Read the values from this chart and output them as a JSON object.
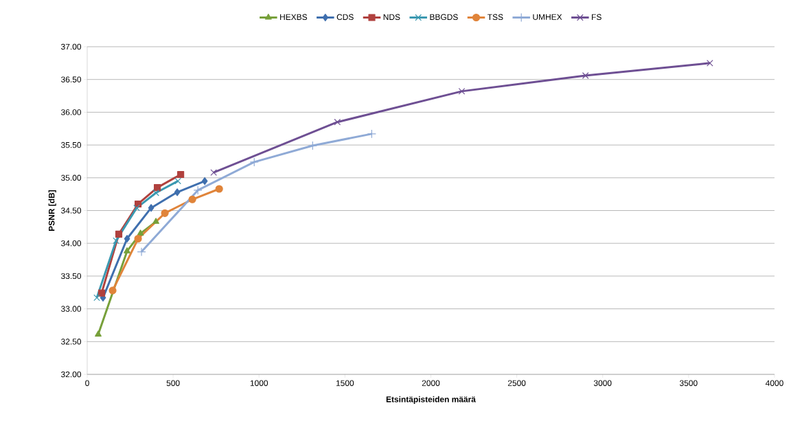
{
  "chart_data": {
    "type": "line",
    "xlabel": "Etsintäpisteiden määrä",
    "ylabel": "PSNR [dB]",
    "xlim": [
      0,
      4000
    ],
    "xticks": [
      0,
      500,
      1000,
      1500,
      2000,
      2500,
      3000,
      3500,
      4000
    ],
    "ylim": [
      32,
      37
    ],
    "yticks": [
      {
        "value": 32,
        "label": "32.00"
      },
      {
        "value": 32.5,
        "label": "32.50"
      },
      {
        "value": 33,
        "label": "33.00"
      },
      {
        "value": 33.5,
        "label": "33.50"
      },
      {
        "value": 34,
        "label": "34.00"
      },
      {
        "value": 34.5,
        "label": "34.50"
      },
      {
        "value": 35,
        "label": "35.00"
      },
      {
        "value": 35.5,
        "label": "35.50"
      },
      {
        "value": 36,
        "label": "36.00"
      },
      {
        "value": 36.5,
        "label": "36.50"
      },
      {
        "value": 37,
        "label": "37.00"
      }
    ],
    "grid": "y",
    "legend": "top",
    "line_style": "solid",
    "series": [
      {
        "name": "HEXBS",
        "color": "#77a03a",
        "marker": "triangle",
        "x": [
          64,
          100,
          232,
          310,
          400
        ],
        "values": [
          32.61,
          null,
          33.88,
          34.15,
          34.33
        ]
      },
      {
        "name": "CDS",
        "color": "#3f6fae",
        "marker": "diamond",
        "x": [
          92,
          232,
          372,
          524,
          684
        ],
        "values": [
          33.17,
          34.07,
          34.54,
          34.78,
          34.95
        ]
      },
      {
        "name": "NDS",
        "color": "#b0413e",
        "marker": "square",
        "x": [
          84,
          184,
          296,
          408,
          544
        ],
        "values": [
          33.24,
          34.14,
          34.6,
          34.85,
          35.05
        ]
      },
      {
        "name": "BBGDS",
        "color": "#3a98b0",
        "marker": "cross",
        "x": [
          56,
          168,
          288,
          400,
          528
        ],
        "values": [
          33.17,
          34.04,
          34.54,
          34.77,
          34.95
        ]
      },
      {
        "name": "TSS",
        "color": "#e0843a",
        "marker": "circle",
        "x": [
          148,
          296,
          452,
          612,
          768
        ],
        "values": [
          33.28,
          34.07,
          34.46,
          34.67,
          34.83
        ]
      },
      {
        "name": "UMHEX",
        "color": "#8faad6",
        "marker": "plus",
        "x": [
          316,
          644,
          972,
          1312,
          1656
        ],
        "values": [
          33.87,
          34.81,
          35.24,
          35.49,
          35.67
        ]
      },
      {
        "name": "FS",
        "color": "#6e4f93",
        "marker": "cross",
        "x": [
          736,
          1456,
          2180,
          2900,
          3624
        ],
        "values": [
          35.08,
          35.85,
          36.32,
          36.56,
          36.75
        ]
      }
    ]
  }
}
